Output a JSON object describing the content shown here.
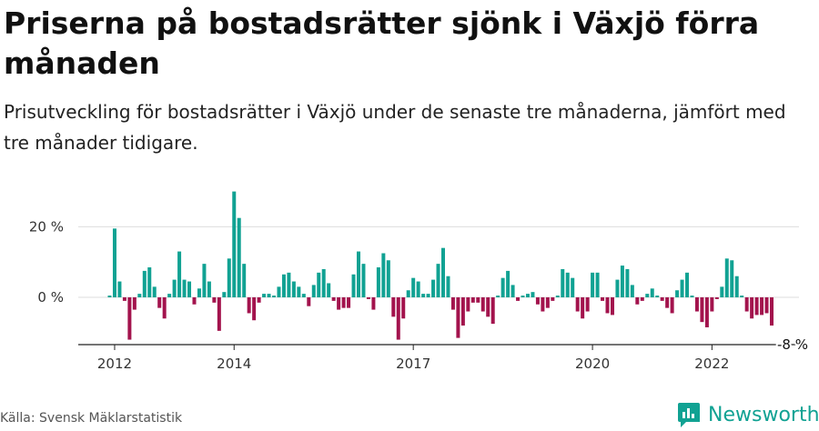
{
  "title": "Priserna på bostadsrätter sjönk i Växjö förra månaden",
  "subtitle": "Prisutveckling för bostadsrätter i Växjö under de senaste tre månaderna, jämfört med tre månader tidigare.",
  "source": "Källa: Svensk Mäklarstatistik",
  "brand": "Newsworthy",
  "colors": {
    "positive": "#11a293",
    "negative": "#a3134d",
    "grid": "#dddddd",
    "text": "#333333"
  },
  "chart_data": {
    "type": "bar",
    "xlabel": "",
    "ylabel": "",
    "ylim": [
      -13,
      30
    ],
    "y_ticks": [
      {
        "value": 0,
        "label": "0 %"
      },
      {
        "value": 20,
        "label": "20 %"
      }
    ],
    "x_ticks": [
      {
        "month": "2012-01",
        "label": "2012"
      },
      {
        "month": "2014-01",
        "label": "2014"
      },
      {
        "month": "2017-01",
        "label": "2017"
      },
      {
        "month": "2020-01",
        "label": "2020"
      },
      {
        "month": "2022-01",
        "label": "2022"
      }
    ],
    "last_value_label": "-8 %",
    "series": [
      {
        "start_month": "2011-12",
        "values": [
          0.5,
          19.5,
          4.5,
          -1,
          -12,
          -3.5,
          1,
          7.5,
          8.5,
          3,
          -3,
          -6,
          1,
          5,
          13,
          5,
          4.5,
          -2,
          2.5,
          9.5,
          4.5,
          -1.5,
          -9.5,
          1.5,
          11,
          30,
          22.5,
          9.5,
          -4.5,
          -6.5,
          -1.5,
          1,
          1,
          0.5,
          3,
          6.5,
          7,
          4.5,
          3,
          1,
          -2.5,
          3.5,
          7,
          8,
          4,
          -1,
          -3.5,
          -3,
          -3,
          6.5,
          13,
          9.5,
          -0.5,
          -3.5,
          8.5,
          12.5,
          10.5,
          -5.5,
          -12,
          -6,
          2,
          5.5,
          4.5,
          1,
          1,
          5,
          9.5,
          14,
          6,
          -3.5,
          -11.5,
          -8,
          -4,
          -1.5,
          -1.5,
          -4,
          -5.5,
          -7.5,
          0.5,
          5.5,
          7.5,
          3.5,
          -1,
          0.5,
          1,
          1.5,
          -2,
          -4,
          -3,
          -1,
          0.5,
          8,
          7,
          5.5,
          -4,
          -6,
          -4,
          7,
          7,
          -1,
          -4.5,
          -5,
          5,
          9,
          8,
          3.5,
          -2,
          -1,
          1,
          2.5,
          0.5,
          -1,
          -3,
          -4.5,
          2,
          5,
          7,
          0.5,
          -4,
          -7,
          -8.5,
          -4,
          -0.5,
          3,
          11,
          10.5,
          6,
          0.5,
          -4,
          -6,
          -5,
          -5,
          -4.5,
          -8
        ]
      }
    ]
  }
}
